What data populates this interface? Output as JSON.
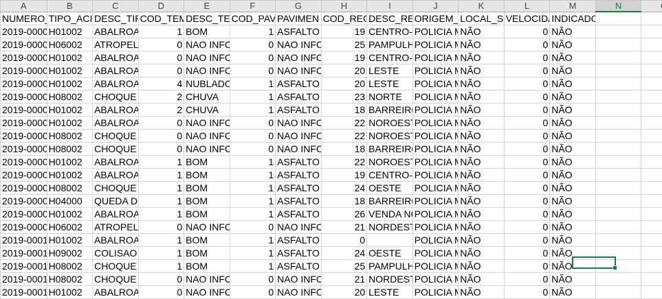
{
  "columns": [
    "A",
    "B",
    "C",
    "D",
    "E",
    "F",
    "G",
    "H",
    "I",
    "J",
    "K",
    "L",
    "M",
    "N",
    "O"
  ],
  "active_column": "N",
  "header_row": [
    "NUMERO_",
    "TIPO_ACI",
    "DESC_TIP",
    "COD_TEM",
    "DESC_TEM",
    "COD_PAV",
    "PAVIMEN",
    "COD_REG",
    "DESC_REG",
    "ORIGEM_",
    "LOCAL_SI",
    "VELOCIDA",
    "INDICADOR_FATALIDADE",
    "",
    ""
  ],
  "rows": [
    [
      "2019-0000",
      "H01002",
      "ABALROAI",
      "1",
      "BOM",
      "1",
      "ASFALTO",
      "19",
      "CENTRO-S",
      "POLICIA M",
      "NÃO",
      "0",
      "NÃO",
      "",
      ""
    ],
    [
      "2019-0000",
      "H06002",
      "ATROPELA",
      "0",
      "NAO INFC",
      "0",
      "NAO INFC",
      "25",
      "PAMPULH",
      "POLICIA M",
      "NÃO",
      "0",
      "NÃO",
      "",
      ""
    ],
    [
      "2019-0000",
      "H01002",
      "ABALROAI",
      "0",
      "NAO INFC",
      "0",
      "NAO INFC",
      "19",
      "CENTRO-S",
      "POLICIA M",
      "NÃO",
      "0",
      "NÃO",
      "",
      ""
    ],
    [
      "2019-0000",
      "H01002",
      "ABALROAI",
      "0",
      "NAO INFC",
      "0",
      "NAO INFC",
      "20",
      "LESTE",
      "POLICIA M",
      "NÃO",
      "0",
      "NÃO",
      "",
      ""
    ],
    [
      "2019-0000",
      "H01002",
      "ABALROAI",
      "4",
      "NUBLADO",
      "1",
      "ASFALTO",
      "20",
      "LESTE",
      "POLICIA M",
      "NÃO",
      "0",
      "NÃO",
      "",
      ""
    ],
    [
      "2019-0000",
      "H08002",
      "CHOQUE M",
      "2",
      "CHUVA",
      "1",
      "ASFALTO",
      "23",
      "NORTE",
      "POLICIA M",
      "NÃO",
      "0",
      "NÃO",
      "",
      ""
    ],
    [
      "2019-0000",
      "H01002",
      "ABALROAI",
      "2",
      "CHUVA",
      "1",
      "ASFALTO",
      "18",
      "BARREIRO",
      "POLICIA M",
      "NÃO",
      "0",
      "NÃO",
      "",
      ""
    ],
    [
      "2019-0000",
      "H01002",
      "ABALROAI",
      "0",
      "NAO INFC",
      "0",
      "NAO INFC",
      "22",
      "NOROESTE",
      "POLICIA M",
      "NÃO",
      "0",
      "NÃO",
      "",
      ""
    ],
    [
      "2019-0000",
      "H08002",
      "CHOQUE M",
      "0",
      "NAO INFC",
      "0",
      "NAO INFC",
      "22",
      "NOROESTE",
      "POLICIA M",
      "NÃO",
      "0",
      "NÃO",
      "",
      ""
    ],
    [
      "2019-0000",
      "H08002",
      "CHOQUE M",
      "0",
      "NAO INFC",
      "0",
      "NAO INFC",
      "18",
      "BARREIRO",
      "POLICIA M",
      "NÃO",
      "0",
      "NÃO",
      "",
      ""
    ],
    [
      "2019-0000",
      "H01002",
      "ABALROAI",
      "1",
      "BOM",
      "1",
      "ASFALTO",
      "22",
      "NOROESTE",
      "POLICIA M",
      "NÃO",
      "0",
      "NÃO",
      "",
      ""
    ],
    [
      "2019-0000",
      "H01002",
      "ABALROAI",
      "1",
      "BOM",
      "1",
      "ASFALTO",
      "19",
      "CENTRO-S",
      "POLICIA M",
      "NÃO",
      "0",
      "NÃO",
      "",
      ""
    ],
    [
      "2019-0000",
      "H08002",
      "CHOQUE M",
      "1",
      "BOM",
      "1",
      "ASFALTO",
      "24",
      "OESTE",
      "POLICIA M",
      "NÃO",
      "0",
      "NÃO",
      "",
      ""
    ],
    [
      "2019-0000",
      "H04000",
      "QUEDA DE",
      "1",
      "BOM",
      "1",
      "ASFALTO",
      "18",
      "BARREIRO",
      "POLICIA M",
      "NÃO",
      "0",
      "NÃO",
      "",
      ""
    ],
    [
      "2019-0000",
      "H01002",
      "ABALROAI",
      "1",
      "BOM",
      "1",
      "ASFALTO",
      "26",
      "VENDA NC",
      "POLICIA M",
      "NÃO",
      "0",
      "NÃO",
      "",
      ""
    ],
    [
      "2019-0000",
      "H06002",
      "ATROPELA",
      "0",
      "NAO INFC",
      "0",
      "NAO INFC",
      "21",
      "NORDESTE",
      "POLICIA M",
      "NÃO",
      "0",
      "NÃO",
      "",
      ""
    ],
    [
      "2019-0001",
      "H01002",
      "ABALROAI",
      "1",
      "BOM",
      "1",
      "ASFALTO",
      "0",
      "",
      "POLICIA M",
      "NÃO",
      "0",
      "NÃO",
      "",
      ""
    ],
    [
      "2019-0001",
      "H09002",
      "COLISAO D",
      "1",
      "BOM",
      "1",
      "ASFALTO",
      "24",
      "OESTE",
      "POLICIA M",
      "NÃO",
      "0",
      "NÃO",
      "",
      ""
    ],
    [
      "2019-0001",
      "H08002",
      "CHOQUE M",
      "1",
      "BOM",
      "1",
      "ASFALTO",
      "25",
      "PAMPULH",
      "POLICIA M",
      "NÃO",
      "0",
      "NÃO",
      "",
      ""
    ],
    [
      "2019-0001",
      "H08002",
      "CHOQUE M",
      "0",
      "NAO INFC",
      "0",
      "NAO INFC",
      "21",
      "NORDESTE",
      "POLICIA M",
      "NÃO",
      "0",
      "NÃO",
      "",
      ""
    ],
    [
      "2019-0001",
      "H01002",
      "ABALROAI",
      "0",
      "NAO INFC",
      "0",
      "NAO INFC",
      "20",
      "LESTE",
      "POLICIA M",
      "NÃO",
      "0",
      "NÃO",
      "",
      ""
    ]
  ],
  "numeric_columns": [
    3,
    5,
    7,
    11
  ]
}
